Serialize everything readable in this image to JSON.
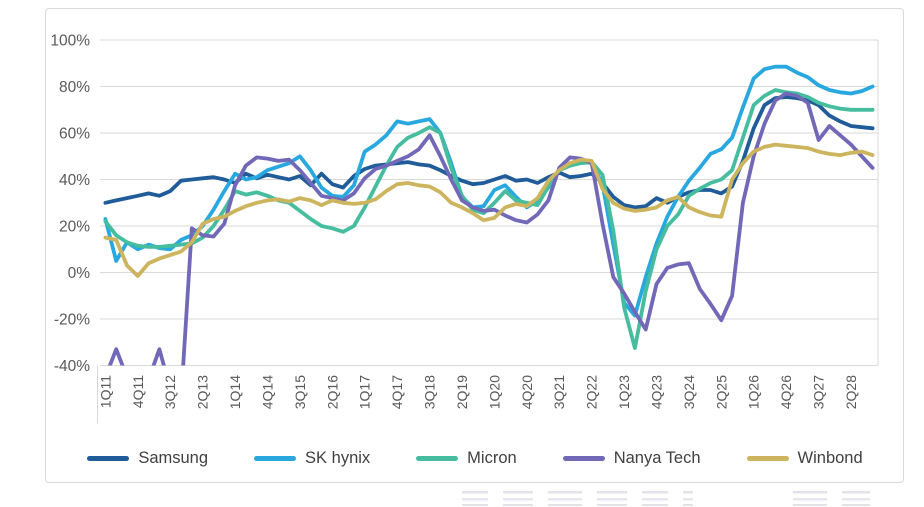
{
  "page": {
    "background": "#ffffff"
  },
  "card": {
    "background": "#ffffff",
    "border_color": "#d9d9d9"
  },
  "chart_data": {
    "type": "line",
    "title": "",
    "xlabel": "",
    "ylabel": "",
    "ylim": [
      -40,
      100
    ],
    "grid": "horizontal",
    "grid_color": "#d9d9d9",
    "axis_label_color": "#595959",
    "legend_position": "bottom",
    "y_ticks": [
      "100%",
      "80%",
      "60%",
      "40%",
      "20%",
      "0%",
      "-20%",
      "-40%"
    ],
    "y_tick_values": [
      100,
      80,
      60,
      40,
      20,
      0,
      -20,
      -40
    ],
    "x_tick_every": 3,
    "x_tick_labels": [
      "1Q11",
      "4Q11",
      "3Q12",
      "2Q13",
      "1Q14",
      "4Q14",
      "3Q15",
      "2Q16",
      "1Q17",
      "4Q17",
      "3Q18",
      "2Q19",
      "1Q20",
      "4Q20",
      "3Q21",
      "2Q22",
      "1Q23",
      "4Q23",
      "3Q24",
      "2Q25",
      "1Q26",
      "4Q26",
      "3Q27",
      "2Q28"
    ],
    "x": [
      "1Q11",
      "2Q11",
      "3Q11",
      "4Q11",
      "1Q12",
      "2Q12",
      "3Q12",
      "4Q12",
      "1Q13",
      "2Q13",
      "3Q13",
      "4Q13",
      "1Q14",
      "2Q14",
      "3Q14",
      "4Q14",
      "1Q15",
      "2Q15",
      "3Q15",
      "4Q15",
      "1Q16",
      "2Q16",
      "3Q16",
      "4Q16",
      "1Q17",
      "2Q17",
      "3Q17",
      "4Q17",
      "1Q18",
      "2Q18",
      "3Q18",
      "4Q18",
      "1Q19",
      "2Q19",
      "3Q19",
      "4Q19",
      "1Q20",
      "2Q20",
      "3Q20",
      "4Q20",
      "1Q21",
      "2Q21",
      "3Q21",
      "4Q21",
      "1Q22",
      "2Q22",
      "3Q22",
      "4Q22",
      "1Q23",
      "2Q23",
      "3Q23",
      "4Q23",
      "1Q24",
      "2Q24",
      "3Q24",
      "4Q24",
      "1Q25",
      "2Q25",
      "3Q25",
      "4Q25",
      "1Q26",
      "2Q26",
      "3Q26",
      "4Q26",
      "1Q27",
      "2Q27",
      "3Q27",
      "4Q27",
      "1Q28",
      "2Q28",
      "3Q28",
      "4Q28"
    ],
    "series": [
      {
        "name": "Samsung",
        "color": "#1f5c99",
        "values": [
          30,
          31,
          32,
          33,
          34,
          33,
          35,
          39.5,
          40,
          40.5,
          41,
          40,
          38.5,
          42.5,
          40.5,
          42,
          41,
          40,
          41.5,
          37.5,
          42.5,
          38,
          36.5,
          41.5,
          44.5,
          46,
          46.5,
          47,
          47.5,
          46.5,
          46,
          44,
          41.5,
          39.5,
          38,
          38.5,
          40,
          41.5,
          39.5,
          40,
          38.5,
          41,
          43,
          41,
          41.5,
          42.5,
          38.5,
          32.5,
          29,
          28,
          28.5,
          32,
          30,
          32.5,
          34.5,
          35.5,
          35.5,
          34,
          37,
          48,
          62,
          72,
          75,
          75.5,
          75,
          74,
          72,
          67.5,
          65,
          63,
          62.5,
          62
        ]
      },
      {
        "name": "SK hynix",
        "color": "#29a8df",
        "values": [
          23,
          5,
          13,
          10,
          12,
          10.5,
          10,
          14,
          16,
          20,
          27,
          35,
          42.5,
          40,
          41,
          44,
          45.5,
          47,
          50,
          44,
          36.5,
          33,
          32.5,
          37.5,
          52,
          55,
          59,
          65,
          64,
          65,
          66,
          60,
          47,
          32.5,
          28,
          28.5,
          35.5,
          37.5,
          32.5,
          28,
          31,
          36.5,
          44,
          46,
          48,
          47,
          38,
          12,
          -13,
          -18.5,
          -2,
          12.5,
          24,
          32.5,
          39.5,
          45,
          51,
          53,
          58,
          71,
          83.5,
          87.5,
          88.5,
          88.5,
          86,
          84,
          80.5,
          78.5,
          77.5,
          77,
          78,
          80
        ]
      },
      {
        "name": "Micron",
        "color": "#45bd9e",
        "values": [
          22,
          16,
          13,
          11.5,
          11,
          11,
          11.5,
          12,
          12.5,
          15,
          20,
          27,
          35,
          33.5,
          34.5,
          33,
          31,
          30,
          26.5,
          23,
          20,
          19,
          17.5,
          20,
          28,
          37,
          46,
          54,
          58,
          60,
          62.5,
          60,
          45,
          33,
          27,
          25.5,
          30,
          35,
          31,
          30,
          29,
          37,
          44,
          46,
          47,
          47.5,
          42,
          18,
          -15,
          -32.5,
          -8,
          10,
          20,
          25,
          33,
          36,
          38.5,
          40,
          44,
          58,
          72,
          76,
          78.5,
          77.5,
          77,
          75.5,
          73,
          71.5,
          70.5,
          70,
          70,
          70
        ]
      },
      {
        "name": "Nanya Tech",
        "color": "#7169b8",
        "values": [
          -45,
          -33,
          -45,
          -50,
          -46,
          -33,
          -50,
          -55,
          19,
          16,
          15.5,
          21,
          37.5,
          46,
          49.5,
          49,
          48,
          48.5,
          44,
          38.5,
          33,
          32,
          31,
          34,
          40.5,
          44.5,
          46,
          48,
          50,
          53,
          59,
          50,
          40,
          31,
          28,
          26.5,
          27,
          24.5,
          22.5,
          21.5,
          25,
          31,
          45,
          49.5,
          49,
          47,
          21,
          -2,
          -9,
          -17,
          -24.5,
          -5,
          2,
          3.5,
          4,
          -7,
          -13.5,
          -20.5,
          -10,
          30,
          50,
          64,
          74,
          77,
          76,
          73,
          57,
          63,
          59,
          55,
          50,
          45
        ]
      },
      {
        "name": "Winbond",
        "color": "#cdb45e",
        "values": [
          15,
          14,
          3,
          -1.5,
          4,
          6,
          7.5,
          9,
          13,
          21,
          23,
          24,
          26.5,
          28.5,
          30,
          31,
          31.5,
          30.5,
          32,
          31,
          29,
          31,
          30,
          29.5,
          30,
          31.5,
          35,
          38,
          38.5,
          37.5,
          37,
          34.5,
          30,
          28,
          25.5,
          22.5,
          23.5,
          28,
          29.5,
          28.5,
          32,
          39.5,
          44,
          47,
          48.5,
          48,
          36,
          30,
          27.5,
          26.5,
          27,
          28,
          31,
          32.5,
          28,
          26,
          24.5,
          24,
          40,
          47,
          52,
          54,
          55,
          54.5,
          54,
          53.5,
          52,
          51,
          50.5,
          51.5,
          52,
          50.5
        ]
      }
    ]
  },
  "watermark": {
    "clipped_partial_glyphs_visible": true
  }
}
